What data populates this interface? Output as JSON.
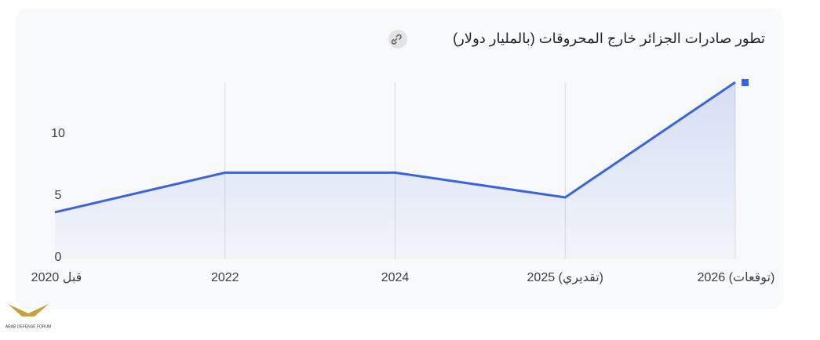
{
  "chart_data": {
    "type": "line",
    "title": "تطور صادرات الجزائر خارج المحروقات (بالمليار دولار)",
    "categories": [
      "قبل 2020",
      "2022",
      "2024",
      "2025 (تقديري)",
      "2026 (توقعات)"
    ],
    "values": [
      3.8,
      7,
      7,
      5,
      14.3
    ],
    "color": "#3b63e0",
    "ylim": [
      0,
      14.3
    ],
    "yticks": [
      0,
      5,
      10
    ],
    "grid": true,
    "area": true
  },
  "watermark": "ARAB DEFENSE FORUM"
}
